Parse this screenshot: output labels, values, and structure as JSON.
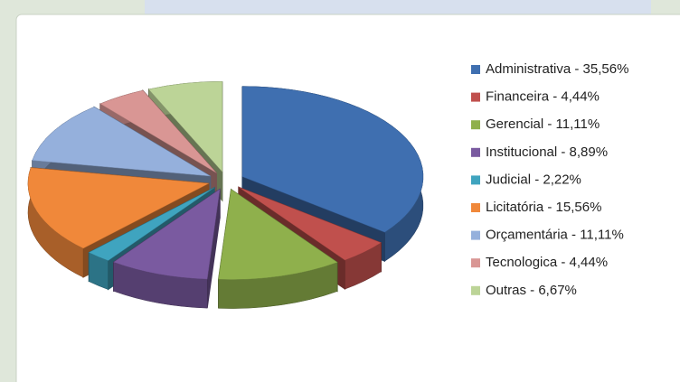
{
  "chart_data": {
    "type": "pie",
    "categories": [
      "Administrativa - 35,56%",
      "Financeira - 4,44%",
      "Gerencial - 11,11%",
      "Institucional - 8,89%",
      "Judicial - 2,22%",
      "Licitatória - 15,56%",
      "Orçamentária - 11,11%",
      "Tecnologica - 4,44%",
      "Outras - 6,67%"
    ],
    "values": [
      35.56,
      4.44,
      11.11,
      8.89,
      2.22,
      15.56,
      11.11,
      4.44,
      6.67
    ],
    "colors": [
      "#3f6fb0",
      "#c0504d",
      "#8fb04c",
      "#7a5aa0",
      "#3fa4bf",
      "#f0883a",
      "#95b0dc",
      "#d99694",
      "#bcd497"
    ],
    "legend": "right"
  }
}
